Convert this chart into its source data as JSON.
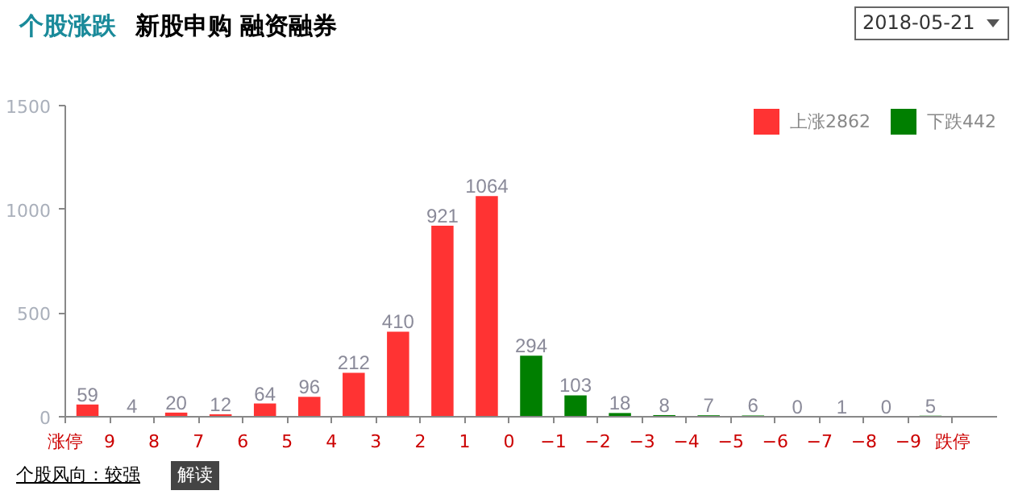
{
  "chart_data": {
    "type": "histogram",
    "title": "个股涨跌",
    "annotations": [
      "新股申购 融资融券",
      "2018-05-21",
      "个股风向：较强",
      "解读"
    ],
    "bins": [
      10,
      9,
      8,
      7,
      6,
      5,
      4,
      3,
      2,
      1,
      0,
      -1,
      -2,
      -3,
      -4,
      -5,
      -6,
      -7,
      -8,
      -9,
      -10
    ],
    "series": [
      {
        "name": "上涨2862",
        "color": "#ff3333",
        "values": [
          59,
          4,
          20,
          12,
          64,
          96,
          212,
          410,
          921,
          1064,
          null,
          null,
          null,
          null,
          null,
          null,
          null,
          null,
          null,
          null
        ]
      },
      {
        "name": "下跌442",
        "color": "#007f00",
        "values": [
          null,
          null,
          null,
          null,
          null,
          null,
          null,
          null,
          null,
          null,
          294,
          103,
          18,
          8,
          7,
          6,
          0,
          1,
          0,
          5
        ]
      }
    ],
    "xlim": [
      10,
      -11
    ],
    "xticks": [
      {
        "value": 10,
        "label": "涨停"
      },
      9,
      8,
      7,
      6,
      5,
      4,
      3,
      2,
      1,
      0,
      -1,
      -2,
      -3,
      -4,
      -5,
      -6,
      -7,
      -8,
      -9,
      {
        "value": -10,
        "label": "跌停"
      }
    ],
    "ylim": [
      0,
      1500
    ],
    "yticks": [
      0,
      500,
      1000,
      1500
    ],
    "data_labels": true,
    "grid": false,
    "legend": "top right"
  }
}
